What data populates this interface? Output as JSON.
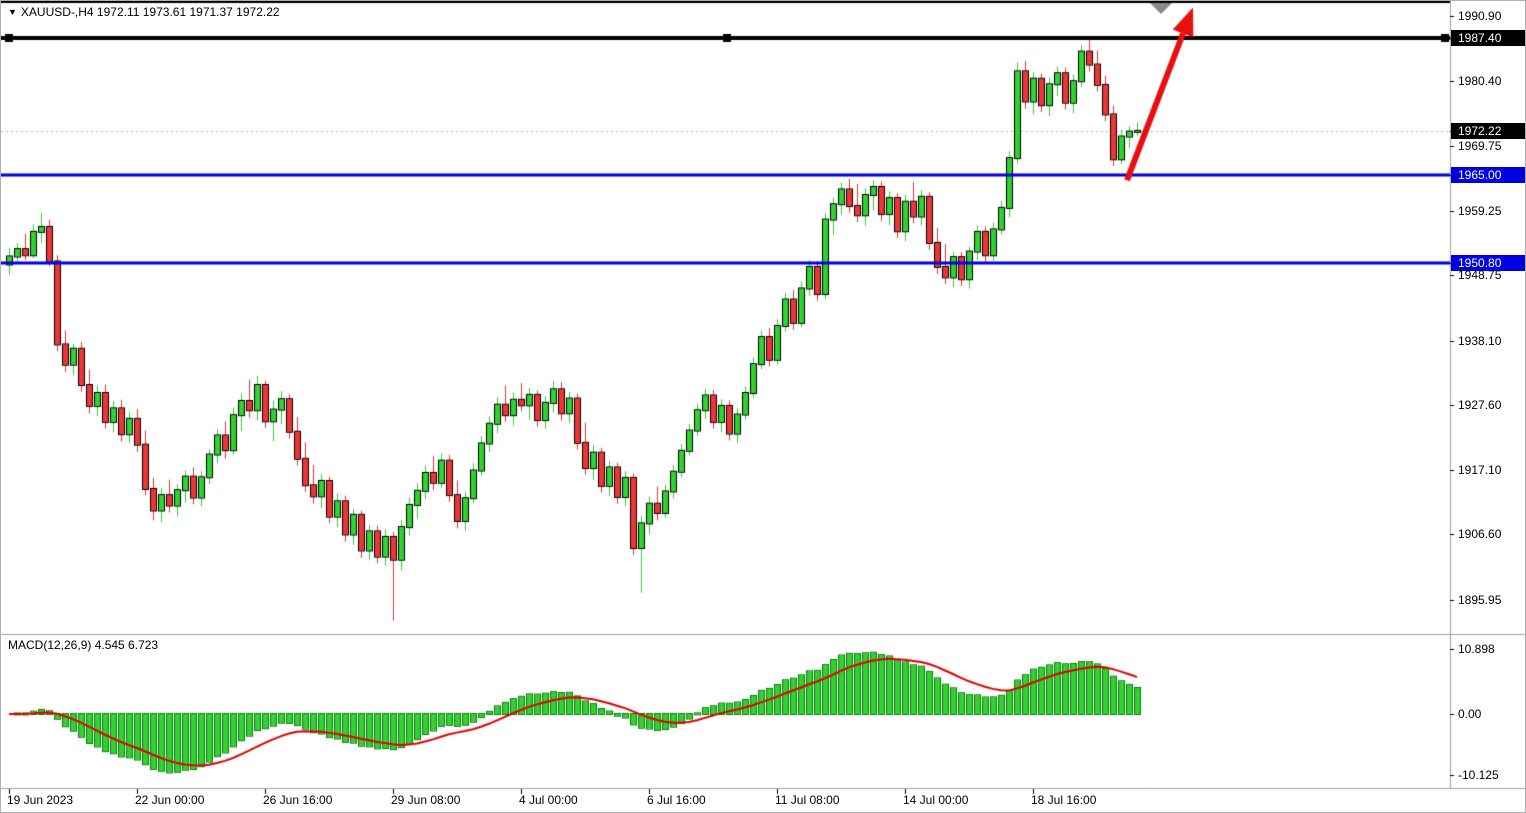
{
  "header": {
    "ohlc_line": "XAUUSD-,H4 1972.11 1973.61 1971.37 1972.22"
  },
  "icons": {
    "one_click_toggle": "▼"
  },
  "macd_panel": {
    "label": "MACD(12,26,9) 4.545 6.723",
    "axis": [
      {
        "text": "10.898",
        "value": 10.898
      },
      {
        "text": "0.00",
        "value": 0
      },
      {
        "text": "-10.125",
        "value": -10.125
      }
    ]
  },
  "price_axis": {
    "labels": [
      {
        "text": "1990.90",
        "value": 1990.9,
        "style": "plain"
      },
      {
        "text": "1987.40",
        "value": 1987.4,
        "style": "black"
      },
      {
        "text": "1980.40",
        "value": 1980.4,
        "style": "plain"
      },
      {
        "text": "1972.22",
        "value": 1972.22,
        "style": "black"
      },
      {
        "text": "1969.75",
        "value": 1969.75,
        "style": "plain"
      },
      {
        "text": "1965.00",
        "value": 1965.0,
        "style": "blue"
      },
      {
        "text": "1959.25",
        "value": 1959.25,
        "style": "plain"
      },
      {
        "text": "1950.80",
        "value": 1950.8,
        "style": "blue"
      },
      {
        "text": "1948.75",
        "value": 1948.75,
        "style": "plain"
      },
      {
        "text": "1938.10",
        "value": 1938.1,
        "style": "plain"
      },
      {
        "text": "1927.60",
        "value": 1927.6,
        "style": "plain"
      },
      {
        "text": "1917.10",
        "value": 1917.1,
        "style": "plain"
      },
      {
        "text": "1906.60",
        "value": 1906.6,
        "style": "plain"
      },
      {
        "text": "1895.95",
        "value": 1895.95,
        "style": "plain"
      }
    ]
  },
  "time_axis": {
    "labels": [
      {
        "text": "19 Jun 2023",
        "bar": 0
      },
      {
        "text": "22 Jun 00:00",
        "bar": 16
      },
      {
        "text": "26 Jun 16:00",
        "bar": 32
      },
      {
        "text": "29 Jun 08:00",
        "bar": 48
      },
      {
        "text": "4 Jul 00:00",
        "bar": 64
      },
      {
        "text": "6 Jul 16:00",
        "bar": 80
      },
      {
        "text": "11 Jul 08:00",
        "bar": 96
      },
      {
        "text": "14 Jul 00:00",
        "bar": 112
      },
      {
        "text": "18 Jul 16:00",
        "bar": 128
      }
    ]
  },
  "chart_data": {
    "type": "candlestick",
    "symbol": "XAUUSD-",
    "timeframe": "H4",
    "last_candle": {
      "open": 1972.11,
      "high": 1973.61,
      "low": 1971.37,
      "close": 1972.22
    },
    "price_range": [
      1890.9,
      1992.7
    ],
    "bars_visible": 142,
    "candles": [
      [
        1950.5,
        1953.2,
        1948.8,
        1951.8
      ],
      [
        1951.8,
        1954.0,
        1950.6,
        1953.0
      ],
      [
        1953.0,
        1955.5,
        1951.2,
        1952.0
      ],
      [
        1952.0,
        1957.0,
        1951.5,
        1955.8
      ],
      [
        1955.8,
        1958.9,
        1954.0,
        1956.6
      ],
      [
        1956.6,
        1957.8,
        1950.2,
        1951.0
      ],
      [
        1951.0,
        1952.0,
        1936.4,
        1937.5
      ],
      [
        1937.5,
        1939.8,
        1933.0,
        1934.2
      ],
      [
        1934.2,
        1937.6,
        1932.5,
        1936.8
      ],
      [
        1936.8,
        1937.9,
        1929.8,
        1930.9
      ],
      [
        1930.9,
        1933.4,
        1926.3,
        1927.5
      ],
      [
        1927.5,
        1930.8,
        1925.9,
        1929.6
      ],
      [
        1929.6,
        1931.0,
        1923.8,
        1924.9
      ],
      [
        1924.9,
        1928.3,
        1923.2,
        1927.1
      ],
      [
        1927.1,
        1928.5,
        1921.7,
        1922.9
      ],
      [
        1922.9,
        1926.6,
        1921.5,
        1925.4
      ],
      [
        1925.4,
        1927.0,
        1920.0,
        1921.2
      ],
      [
        1921.2,
        1923.5,
        1913.0,
        1914.0
      ],
      [
        1914.0,
        1915.8,
        1908.9,
        1910.5
      ],
      [
        1910.5,
        1914.2,
        1908.6,
        1913.0
      ],
      [
        1913.0,
        1915.5,
        1910.2,
        1911.3
      ],
      [
        1911.3,
        1914.8,
        1909.5,
        1913.8
      ],
      [
        1913.8,
        1917.0,
        1911.8,
        1916.0
      ],
      [
        1916.0,
        1917.5,
        1911.5,
        1912.6
      ],
      [
        1912.6,
        1916.9,
        1911.2,
        1915.9
      ],
      [
        1915.9,
        1920.5,
        1914.8,
        1919.6
      ],
      [
        1919.6,
        1923.8,
        1918.2,
        1922.7
      ],
      [
        1922.7,
        1925.0,
        1918.9,
        1920.3
      ],
      [
        1920.3,
        1927.2,
        1919.6,
        1926.0
      ],
      [
        1926.0,
        1929.5,
        1923.4,
        1928.3
      ],
      [
        1928.3,
        1931.8,
        1925.6,
        1926.8
      ],
      [
        1926.8,
        1932.4,
        1925.2,
        1930.9
      ],
      [
        1930.9,
        1931.6,
        1923.9,
        1925.0
      ],
      [
        1925.0,
        1928.4,
        1921.8,
        1926.9
      ],
      [
        1926.9,
        1929.9,
        1924.5,
        1928.6
      ],
      [
        1928.6,
        1929.4,
        1922.2,
        1923.3
      ],
      [
        1923.3,
        1925.7,
        1917.8,
        1918.9
      ],
      [
        1918.9,
        1921.6,
        1913.5,
        1914.6
      ],
      [
        1914.6,
        1917.9,
        1911.6,
        1912.8
      ],
      [
        1912.8,
        1916.4,
        1910.9,
        1915.3
      ],
      [
        1915.3,
        1916.0,
        1908.4,
        1909.5
      ],
      [
        1909.5,
        1913.2,
        1907.8,
        1912.0
      ],
      [
        1912.0,
        1912.9,
        1905.4,
        1906.6
      ],
      [
        1906.6,
        1910.8,
        1904.9,
        1909.8
      ],
      [
        1909.8,
        1910.5,
        1902.8,
        1904.0
      ],
      [
        1904.0,
        1908.2,
        1902.4,
        1907.1
      ],
      [
        1907.1,
        1908.0,
        1901.9,
        1903.0
      ],
      [
        1903.0,
        1907.4,
        1901.5,
        1906.2
      ],
      [
        1906.2,
        1907.0,
        1892.6,
        1902.5
      ],
      [
        1902.5,
        1908.9,
        1900.8,
        1907.8
      ],
      [
        1907.8,
        1912.6,
        1906.4,
        1911.4
      ],
      [
        1911.4,
        1914.9,
        1909.2,
        1913.7
      ],
      [
        1913.7,
        1917.8,
        1912.3,
        1916.6
      ],
      [
        1916.6,
        1919.4,
        1913.8,
        1915.0
      ],
      [
        1915.0,
        1919.8,
        1914.2,
        1918.6
      ],
      [
        1918.6,
        1919.5,
        1911.9,
        1913.0
      ],
      [
        1913.0,
        1915.4,
        1907.6,
        1908.8
      ],
      [
        1908.8,
        1913.6,
        1907.2,
        1912.5
      ],
      [
        1912.5,
        1918.2,
        1911.7,
        1917.0
      ],
      [
        1917.0,
        1922.6,
        1916.1,
        1921.4
      ],
      [
        1921.4,
        1925.8,
        1920.0,
        1924.6
      ],
      [
        1924.6,
        1928.9,
        1923.1,
        1927.7
      ],
      [
        1927.7,
        1930.8,
        1924.9,
        1926.0
      ],
      [
        1926.0,
        1929.7,
        1924.3,
        1928.5
      ],
      [
        1928.5,
        1931.2,
        1926.6,
        1927.6
      ],
      [
        1927.6,
        1930.4,
        1925.3,
        1929.3
      ],
      [
        1929.3,
        1930.0,
        1924.1,
        1925.2
      ],
      [
        1925.2,
        1929.1,
        1923.8,
        1928.0
      ],
      [
        1928.0,
        1931.6,
        1926.4,
        1930.2
      ],
      [
        1930.2,
        1931.4,
        1925.1,
        1926.3
      ],
      [
        1926.3,
        1929.8,
        1924.7,
        1928.7
      ],
      [
        1928.7,
        1929.5,
        1920.4,
        1921.5
      ],
      [
        1921.5,
        1924.8,
        1916.3,
        1917.4
      ],
      [
        1917.4,
        1921.2,
        1915.5,
        1919.9
      ],
      [
        1919.9,
        1920.7,
        1913.4,
        1914.5
      ],
      [
        1914.5,
        1918.6,
        1912.9,
        1917.5
      ],
      [
        1917.5,
        1918.3,
        1911.6,
        1912.7
      ],
      [
        1912.7,
        1916.9,
        1911.2,
        1915.8
      ],
      [
        1915.8,
        1916.5,
        1903.2,
        1904.4
      ],
      [
        1904.4,
        1909.7,
        1897.1,
        1908.4
      ],
      [
        1908.4,
        1912.8,
        1906.6,
        1911.6
      ],
      [
        1911.6,
        1914.4,
        1908.9,
        1910.1
      ],
      [
        1910.1,
        1914.7,
        1909.3,
        1913.6
      ],
      [
        1913.6,
        1917.9,
        1912.5,
        1916.8
      ],
      [
        1916.8,
        1921.3,
        1915.9,
        1920.2
      ],
      [
        1920.2,
        1924.6,
        1919.4,
        1923.5
      ],
      [
        1923.5,
        1927.9,
        1922.6,
        1926.8
      ],
      [
        1926.8,
        1930.3,
        1925.4,
        1929.2
      ],
      [
        1929.2,
        1930.1,
        1923.8,
        1924.9
      ],
      [
        1924.9,
        1928.6,
        1923.3,
        1927.5
      ],
      [
        1927.5,
        1928.4,
        1921.9,
        1923.0
      ],
      [
        1923.0,
        1927.2,
        1921.5,
        1926.1
      ],
      [
        1926.1,
        1930.7,
        1925.2,
        1929.6
      ],
      [
        1929.6,
        1935.4,
        1928.8,
        1934.3
      ],
      [
        1934.3,
        1939.8,
        1933.5,
        1938.7
      ],
      [
        1938.7,
        1940.2,
        1933.9,
        1935.0
      ],
      [
        1935.0,
        1941.6,
        1934.2,
        1940.5
      ],
      [
        1940.5,
        1945.9,
        1939.6,
        1944.8
      ],
      [
        1944.8,
        1946.3,
        1939.9,
        1941.0
      ],
      [
        1941.0,
        1947.7,
        1940.3,
        1946.6
      ],
      [
        1946.6,
        1951.2,
        1945.4,
        1950.1
      ],
      [
        1950.1,
        1951.0,
        1944.6,
        1945.7
      ],
      [
        1945.7,
        1958.9,
        1944.9,
        1957.8
      ],
      [
        1957.8,
        1961.4,
        1955.3,
        1960.3
      ],
      [
        1960.3,
        1963.8,
        1958.6,
        1962.7
      ],
      [
        1962.7,
        1964.4,
        1958.9,
        1960.0
      ],
      [
        1960.0,
        1963.6,
        1957.4,
        1958.5
      ],
      [
        1958.5,
        1962.9,
        1956.8,
        1961.8
      ],
      [
        1961.8,
        1964.2,
        1959.3,
        1963.1
      ],
      [
        1963.1,
        1964.0,
        1957.6,
        1958.7
      ],
      [
        1958.7,
        1962.4,
        1956.9,
        1961.3
      ],
      [
        1961.3,
        1962.1,
        1954.8,
        1955.9
      ],
      [
        1955.9,
        1961.8,
        1954.3,
        1960.7
      ],
      [
        1960.7,
        1963.9,
        1957.2,
        1958.3
      ],
      [
        1958.3,
        1962.6,
        1956.8,
        1961.5
      ],
      [
        1961.5,
        1962.3,
        1952.9,
        1954.0
      ],
      [
        1954.0,
        1956.4,
        1948.9,
        1950.1
      ],
      [
        1950.1,
        1953.8,
        1947.3,
        1948.4
      ],
      [
        1948.4,
        1952.6,
        1946.8,
        1951.7
      ],
      [
        1951.7,
        1952.5,
        1947.0,
        1948.1
      ],
      [
        1948.1,
        1953.4,
        1946.6,
        1952.6
      ],
      [
        1952.6,
        1956.9,
        1951.2,
        1955.8
      ],
      [
        1955.8,
        1956.7,
        1950.9,
        1952.0
      ],
      [
        1952.0,
        1957.3,
        1951.1,
        1956.2
      ],
      [
        1956.2,
        1960.8,
        1955.4,
        1959.7
      ],
      [
        1959.7,
        1968.9,
        1958.2,
        1967.8
      ],
      [
        1967.8,
        1983.4,
        1966.9,
        1981.9
      ],
      [
        1981.9,
        1983.6,
        1975.8,
        1977.0
      ],
      [
        1977.0,
        1981.8,
        1974.9,
        1980.7
      ],
      [
        1980.7,
        1981.5,
        1975.3,
        1976.4
      ],
      [
        1976.4,
        1980.9,
        1974.6,
        1979.8
      ],
      [
        1979.8,
        1982.7,
        1977.9,
        1981.6
      ],
      [
        1981.6,
        1982.5,
        1975.7,
        1976.8
      ],
      [
        1976.8,
        1981.4,
        1975.1,
        1980.3
      ],
      [
        1980.3,
        1986.2,
        1979.4,
        1985.1
      ],
      [
        1985.1,
        1987.4,
        1981.9,
        1983.0
      ],
      [
        1983.0,
        1985.3,
        1978.6,
        1979.7
      ],
      [
        1979.7,
        1981.2,
        1973.8,
        1974.9
      ],
      [
        1974.9,
        1976.3,
        1966.5,
        1967.6
      ],
      [
        1967.6,
        1972.4,
        1966.8,
        1971.3
      ],
      [
        1971.3,
        1973.0,
        1969.4,
        1972.11
      ],
      [
        1972.11,
        1973.61,
        1971.37,
        1972.22
      ]
    ],
    "levels": [
      {
        "value": 1987.4,
        "color": "#000000",
        "width": 4,
        "selected": true
      },
      {
        "value": 1965.0,
        "color": "#0000e0",
        "width": 3,
        "selected": false
      },
      {
        "value": 1950.8,
        "color": "#0000e0",
        "width": 3,
        "selected": false
      }
    ],
    "bid_line": {
      "value": 1972.22
    },
    "indicator": {
      "name": "MACD",
      "fast": 12,
      "slow": 26,
      "signal": 9,
      "value": 4.545,
      "signal_value": 6.723,
      "range": [
        -10.125,
        10.898
      ]
    },
    "annotations": {
      "trend_arrow": {
        "from_bar": 139.75,
        "from_price": 1964.2,
        "to_bar": 148,
        "to_price": 1992.3,
        "color": "#e80f0f",
        "width": 6
      },
      "shift_marker_bar": 144
    },
    "colors": {
      "background": "#ffffff",
      "bull": "#2ed32e",
      "bear": "#ef3434",
      "candle_border": "#000000",
      "macd_histogram": "#2ed32e",
      "macd_hist_border": "#0c7a0c",
      "macd_signal": "#e00000",
      "level_blue": "#0000e0",
      "level_black": "#000000",
      "bid_line": "#b4b4b4",
      "separator": "#a0a0a0",
      "shift_marker": "#8a8a8a",
      "axis_text": "#000000",
      "tag_text": "#ffffff"
    }
  }
}
